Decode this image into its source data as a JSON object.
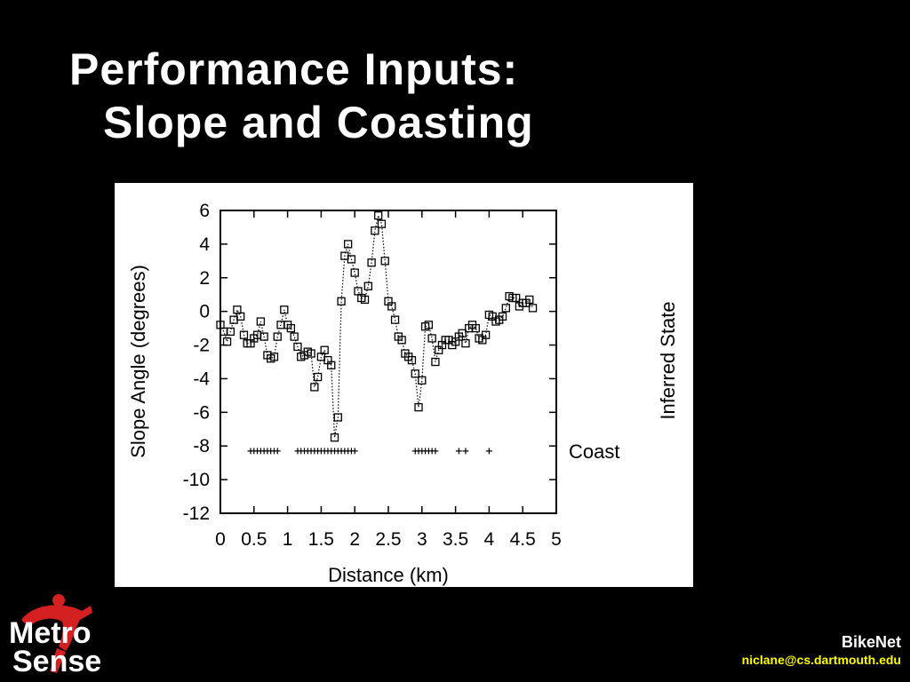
{
  "slide": {
    "title_line1": "Performance Inputs:",
    "title_line2": "Slope and Coasting",
    "footer_project": "BikeNet",
    "footer_email": "niclane@cs.dartmouth.edu",
    "logo_line1": "Metro",
    "logo_line2": "Sense",
    "colors": {
      "background": "#000000",
      "text": "#ffffff",
      "email": "#ffff00",
      "logo_red": "#d42020"
    }
  },
  "chart_data": {
    "type": "scatter",
    "title": "",
    "xlabel": "Distance (km)",
    "ylabel": "Slope Angle (degrees)",
    "y2label": "Inferred State",
    "xlim": [
      0,
      5
    ],
    "ylim": [
      -12,
      6
    ],
    "xticks": [
      "0",
      "0.5",
      "1",
      "1.5",
      "2",
      "2.5",
      "3",
      "3.5",
      "4",
      "4.5",
      "5"
    ],
    "yticks": [
      "6",
      "4",
      "2",
      "0",
      "-2",
      "-4",
      "-6",
      "-8",
      "-10",
      "-12"
    ],
    "grid": false,
    "series": [
      {
        "marker": "square",
        "line": "dotted",
        "x": [
          0.0,
          0.05,
          0.1,
          0.15,
          0.2,
          0.25,
          0.3,
          0.35,
          0.4,
          0.45,
          0.5,
          0.55,
          0.6,
          0.65,
          0.7,
          0.75,
          0.8,
          0.85,
          0.9,
          0.95,
          1.0,
          1.05,
          1.1,
          1.15,
          1.2,
          1.25,
          1.3,
          1.35,
          1.4,
          1.45,
          1.5,
          1.55,
          1.6,
          1.65,
          1.7,
          1.75,
          1.8,
          1.85,
          1.9,
          1.95,
          2.0,
          2.05,
          2.1,
          2.15,
          2.2,
          2.25,
          2.3,
          2.35,
          2.4,
          2.45,
          2.5,
          2.55,
          2.6,
          2.65,
          2.7,
          2.75,
          2.8,
          2.85,
          2.9,
          2.95,
          3.0,
          3.05,
          3.1,
          3.15,
          3.2,
          3.25,
          3.3,
          3.35,
          3.4,
          3.45,
          3.5,
          3.55,
          3.6,
          3.65,
          3.7,
          3.75,
          3.8,
          3.85,
          3.9,
          3.95,
          4.0,
          4.05,
          4.1,
          4.15,
          4.2,
          4.25,
          4.3,
          4.35,
          4.4,
          4.45,
          4.5,
          4.55,
          4.6,
          4.65
        ],
        "y": [
          -0.8,
          -1.2,
          -1.8,
          -1.2,
          -0.5,
          0.1,
          -0.3,
          -1.4,
          -1.9,
          -1.9,
          -1.6,
          -1.4,
          -0.6,
          -1.5,
          -2.6,
          -2.8,
          -2.7,
          -1.5,
          -0.8,
          0.1,
          -0.8,
          -1.0,
          -1.5,
          -2.1,
          -2.7,
          -2.6,
          -2.4,
          -2.5,
          -4.5,
          -3.9,
          -2.7,
          -2.3,
          -2.9,
          -3.2,
          -7.5,
          -6.3,
          0.6,
          3.3,
          4.0,
          3.1,
          2.3,
          1.2,
          0.8,
          0.7,
          1.5,
          2.9,
          4.8,
          5.7,
          5.2,
          3.0,
          0.6,
          0.3,
          -0.5,
          -1.5,
          -1.7,
          -2.5,
          -2.7,
          -2.9,
          -3.7,
          -5.7,
          -4.1,
          -0.9,
          -0.8,
          -1.6,
          -3.0,
          -2.3,
          -2.0,
          -1.7,
          -1.7,
          -2.0,
          -1.8,
          -1.5,
          -1.3,
          -1.9,
          -1.0,
          -0.8,
          -1.0,
          -1.6,
          -1.7,
          -1.4,
          -0.2,
          -0.3,
          -0.6,
          -0.5,
          -0.3,
          0.2,
          0.9,
          0.8,
          0.8,
          0.3,
          0.5,
          0.5,
          0.7,
          0.2
        ]
      }
    ],
    "state_track": {
      "label": "Coast",
      "y": -8.3,
      "x": [
        0.45,
        0.5,
        0.55,
        0.6,
        0.65,
        0.7,
        0.75,
        0.8,
        0.85,
        1.15,
        1.2,
        1.25,
        1.3,
        1.35,
        1.4,
        1.45,
        1.5,
        1.55,
        1.6,
        1.65,
        1.7,
        1.75,
        1.8,
        1.85,
        1.9,
        1.95,
        2.0,
        2.9,
        2.95,
        3.0,
        3.05,
        3.1,
        3.15,
        3.2,
        3.55,
        3.65,
        4.0
      ]
    }
  }
}
